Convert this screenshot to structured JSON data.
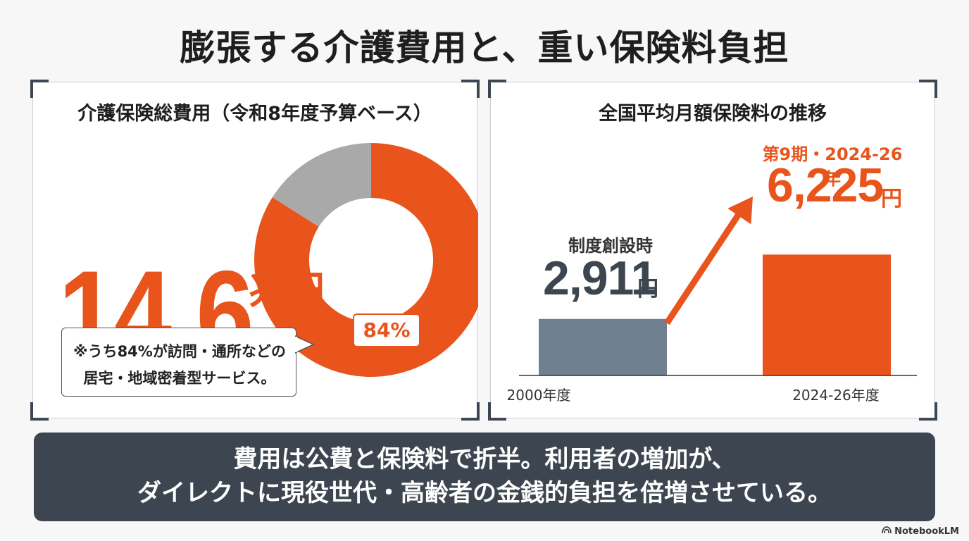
{
  "title": "膨張する介護費用と、重い保険料負担",
  "left_panel": {
    "title": "介護保険総費用（令和8年度予算ベース）",
    "big_value": "14.6",
    "big_unit": "兆円",
    "pct_label": "84%",
    "note_line1": "※うち84%が訪問・通所などの",
    "note_line2": "居宅・地域密着型サービス。"
  },
  "right_panel": {
    "title": "全国平均月額保険料の推移",
    "left_annot_label": "制度創設時",
    "left_annot_value": "2,911",
    "left_annot_unit": "円",
    "right_annot_label": "第9期・2024-26年",
    "right_annot_value": "6,225",
    "right_annot_unit": "円"
  },
  "banner": {
    "line1": "費用は公費と保険料で折半。利用者の増加が、",
    "line2": "ダイレクトに現役世代・高齢者の金銭的負担を倍増させている。"
  },
  "brand": "NotebookLM",
  "colors": {
    "accent": "#e8541c",
    "gray_segment": "#a9a9a9",
    "bar_old": "#708090",
    "dark": "#3d4650"
  },
  "chart_data": [
    {
      "type": "pie",
      "variant": "donut",
      "title": "介護保険総費用（令和8年度予算ベース）",
      "slices": [
        {
          "label": "居宅・地域密着型サービス",
          "value": 84,
          "color": "#e8541c"
        },
        {
          "label": "",
          "value": 16,
          "color": "#a9a9a9"
        }
      ],
      "data_labels": [
        "84%"
      ],
      "center_text": "14.6兆円",
      "grid": false,
      "legend": "none"
    },
    {
      "type": "bar",
      "title": "全国平均月額保険料の推移",
      "categories": [
        "2000年度",
        "2024-26年度"
      ],
      "values": [
        2911,
        6225
      ],
      "unit": "円",
      "colors": [
        "#708090",
        "#e8541c"
      ],
      "ylim": [
        0,
        7000
      ],
      "grid": false,
      "legend": "none"
    }
  ]
}
